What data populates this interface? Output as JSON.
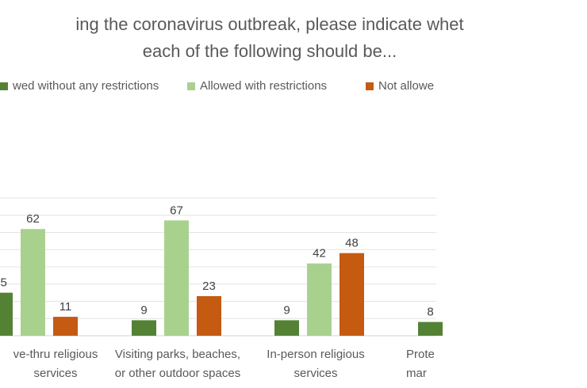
{
  "chart_data": {
    "type": "bar",
    "title": "…ing the coronavirus outbreak, please indicate whet… each of the following should be...",
    "title_lines": [
      "ing the coronavirus outbreak, please indicate whet",
      "each of the following should be..."
    ],
    "categories": [
      "…ve-thru religious services",
      "Visiting parks, beaches, or other outdoor spaces",
      "In-person religious services",
      "Prote… mar…"
    ],
    "category_lines": [
      [
        "ve-thru religious",
        "services"
      ],
      [
        "Visiting parks, beaches,",
        "or other outdoor spaces"
      ],
      [
        "In-person religious",
        "services"
      ],
      [
        "Prote",
        "mar"
      ]
    ],
    "series": [
      {
        "name": "…wed without any restrictions",
        "legend_text": "wed without any restrictions",
        "color": "#548235",
        "values": [
          25,
          9,
          9,
          8
        ]
      },
      {
        "name": "Allowed with restrictions",
        "legend_text": "Allowed with restrictions",
        "color": "#a9d18e",
        "values": [
          62,
          67,
          42,
          null
        ]
      },
      {
        "name": "Not allowe…",
        "legend_text": "Not allowe",
        "color": "#c55a11",
        "values": [
          11,
          23,
          48,
          null
        ]
      }
    ],
    "ylim": [
      0,
      80
    ],
    "grid": true,
    "legend_position": "top"
  }
}
